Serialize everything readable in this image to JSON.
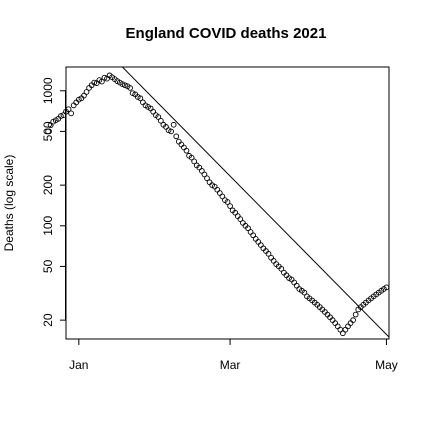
{
  "chart_data": {
    "type": "scatter",
    "title": "England COVID deaths 2021",
    "xlabel": "",
    "ylabel": "Deaths (log scale)",
    "y_scale": "log",
    "xlim": [
      "2020-12-27",
      "2021-05-02"
    ],
    "ylim": [
      14.5,
      1500
    ],
    "x_ticks": [
      {
        "date": "2021-01-01",
        "label": "Jan"
      },
      {
        "date": "2021-03-01",
        "label": "Mar"
      },
      {
        "date": "2021-05-01",
        "label": "May"
      }
    ],
    "y_ticks": [
      20,
      50,
      100,
      200,
      500,
      1000
    ],
    "grid": false,
    "legend": "none",
    "fit_line": {
      "from": {
        "date": "2021-01-18",
        "y": 1500
      },
      "to": {
        "date": "2021-05-02",
        "y": 15
      }
    },
    "points": [
      {
        "date": "2020-12-20",
        "y": 500
      },
      {
        "date": "2020-12-21",
        "y": 555
      },
      {
        "date": "2020-12-22",
        "y": 590
      },
      {
        "date": "2020-12-23",
        "y": 605
      },
      {
        "date": "2020-12-24",
        "y": 620
      },
      {
        "date": "2020-12-25",
        "y": 650
      },
      {
        "date": "2020-12-26",
        "y": 660
      },
      {
        "date": "2020-12-27",
        "y": 700
      },
      {
        "date": "2020-12-28",
        "y": 730
      },
      {
        "date": "2020-12-29",
        "y": 680
      },
      {
        "date": "2020-12-30",
        "y": 780
      },
      {
        "date": "2020-12-31",
        "y": 820
      },
      {
        "date": "2021-01-01",
        "y": 860
      },
      {
        "date": "2021-01-02",
        "y": 880
      },
      {
        "date": "2021-01-03",
        "y": 920
      },
      {
        "date": "2021-01-04",
        "y": 980
      },
      {
        "date": "2021-01-05",
        "y": 1050
      },
      {
        "date": "2021-01-06",
        "y": 1100
      },
      {
        "date": "2021-01-07",
        "y": 1150
      },
      {
        "date": "2021-01-08",
        "y": 1140
      },
      {
        "date": "2021-01-09",
        "y": 1200
      },
      {
        "date": "2021-01-10",
        "y": 1170
      },
      {
        "date": "2021-01-11",
        "y": 1250
      },
      {
        "date": "2021-01-12",
        "y": 1230
      },
      {
        "date": "2021-01-13",
        "y": 1300
      },
      {
        "date": "2021-01-14",
        "y": 1260
      },
      {
        "date": "2021-01-15",
        "y": 1220
      },
      {
        "date": "2021-01-16",
        "y": 1180
      },
      {
        "date": "2021-01-17",
        "y": 1150
      },
      {
        "date": "2021-01-18",
        "y": 1120
      },
      {
        "date": "2021-01-19",
        "y": 1100
      },
      {
        "date": "2021-01-20",
        "y": 1080
      },
      {
        "date": "2021-01-21",
        "y": 1050
      },
      {
        "date": "2021-01-22",
        "y": 960
      },
      {
        "date": "2021-01-23",
        "y": 940
      },
      {
        "date": "2021-01-24",
        "y": 900
      },
      {
        "date": "2021-01-25",
        "y": 880
      },
      {
        "date": "2021-01-26",
        "y": 820
      },
      {
        "date": "2021-01-27",
        "y": 780
      },
      {
        "date": "2021-01-28",
        "y": 760
      },
      {
        "date": "2021-01-29",
        "y": 740
      },
      {
        "date": "2021-01-30",
        "y": 700
      },
      {
        "date": "2021-01-31",
        "y": 660
      },
      {
        "date": "2021-02-01",
        "y": 640
      },
      {
        "date": "2021-02-02",
        "y": 600
      },
      {
        "date": "2021-02-03",
        "y": 560
      },
      {
        "date": "2021-02-04",
        "y": 540
      },
      {
        "date": "2021-02-05",
        "y": 510
      },
      {
        "date": "2021-02-06",
        "y": 500
      },
      {
        "date": "2021-02-07",
        "y": 560
      },
      {
        "date": "2021-02-08",
        "y": 460
      },
      {
        "date": "2021-02-09",
        "y": 420
      },
      {
        "date": "2021-02-10",
        "y": 400
      },
      {
        "date": "2021-02-11",
        "y": 380
      },
      {
        "date": "2021-02-12",
        "y": 360
      },
      {
        "date": "2021-02-13",
        "y": 330
      },
      {
        "date": "2021-02-14",
        "y": 320
      },
      {
        "date": "2021-02-15",
        "y": 300
      },
      {
        "date": "2021-02-16",
        "y": 280
      },
      {
        "date": "2021-02-17",
        "y": 270
      },
      {
        "date": "2021-02-18",
        "y": 255
      },
      {
        "date": "2021-02-19",
        "y": 240
      },
      {
        "date": "2021-02-20",
        "y": 225
      },
      {
        "date": "2021-02-21",
        "y": 210
      },
      {
        "date": "2021-02-22",
        "y": 200
      },
      {
        "date": "2021-02-23",
        "y": 195
      },
      {
        "date": "2021-02-24",
        "y": 185
      },
      {
        "date": "2021-02-25",
        "y": 175
      },
      {
        "date": "2021-02-26",
        "y": 165
      },
      {
        "date": "2021-02-27",
        "y": 155
      },
      {
        "date": "2021-02-28",
        "y": 150
      },
      {
        "date": "2021-03-01",
        "y": 140
      },
      {
        "date": "2021-03-02",
        "y": 130
      },
      {
        "date": "2021-03-03",
        "y": 125
      },
      {
        "date": "2021-03-04",
        "y": 118
      },
      {
        "date": "2021-03-05",
        "y": 112
      },
      {
        "date": "2021-03-06",
        "y": 105
      },
      {
        "date": "2021-03-07",
        "y": 100
      },
      {
        "date": "2021-03-08",
        "y": 96
      },
      {
        "date": "2021-03-09",
        "y": 90
      },
      {
        "date": "2021-03-10",
        "y": 85
      },
      {
        "date": "2021-03-11",
        "y": 80
      },
      {
        "date": "2021-03-12",
        "y": 76
      },
      {
        "date": "2021-03-13",
        "y": 72
      },
      {
        "date": "2021-03-14",
        "y": 68
      },
      {
        "date": "2021-03-15",
        "y": 65
      },
      {
        "date": "2021-03-16",
        "y": 62
      },
      {
        "date": "2021-03-17",
        "y": 58
      },
      {
        "date": "2021-03-18",
        "y": 55
      },
      {
        "date": "2021-03-19",
        "y": 52
      },
      {
        "date": "2021-03-20",
        "y": 50
      },
      {
        "date": "2021-03-21",
        "y": 48
      },
      {
        "date": "2021-03-22",
        "y": 45
      },
      {
        "date": "2021-03-23",
        "y": 43
      },
      {
        "date": "2021-03-24",
        "y": 41
      },
      {
        "date": "2021-03-25",
        "y": 40
      },
      {
        "date": "2021-03-26",
        "y": 38
      },
      {
        "date": "2021-03-27",
        "y": 36
      },
      {
        "date": "2021-03-28",
        "y": 34
      },
      {
        "date": "2021-03-29",
        "y": 33
      },
      {
        "date": "2021-03-30",
        "y": 32
      },
      {
        "date": "2021-03-31",
        "y": 30
      },
      {
        "date": "2021-04-01",
        "y": 29
      },
      {
        "date": "2021-04-02",
        "y": 28
      },
      {
        "date": "2021-04-03",
        "y": 27
      },
      {
        "date": "2021-04-04",
        "y": 26
      },
      {
        "date": "2021-04-05",
        "y": 25
      },
      {
        "date": "2021-04-06",
        "y": 24
      },
      {
        "date": "2021-04-07",
        "y": 23
      },
      {
        "date": "2021-04-08",
        "y": 22
      },
      {
        "date": "2021-04-09",
        "y": 21
      },
      {
        "date": "2021-04-10",
        "y": 20
      },
      {
        "date": "2021-04-11",
        "y": 19
      },
      {
        "date": "2021-04-12",
        "y": 18
      },
      {
        "date": "2021-04-13",
        "y": 17
      },
      {
        "date": "2021-04-14",
        "y": 16
      },
      {
        "date": "2021-04-15",
        "y": 17
      },
      {
        "date": "2021-04-16",
        "y": 18
      },
      {
        "date": "2021-04-17",
        "y": 19
      },
      {
        "date": "2021-04-18",
        "y": 20
      },
      {
        "date": "2021-04-19",
        "y": 22
      },
      {
        "date": "2021-04-20",
        "y": 24
      },
      {
        "date": "2021-04-21",
        "y": 25
      },
      {
        "date": "2021-04-22",
        "y": 26
      },
      {
        "date": "2021-04-23",
        "y": 27
      },
      {
        "date": "2021-04-24",
        "y": 28
      },
      {
        "date": "2021-04-25",
        "y": 29
      },
      {
        "date": "2021-04-26",
        "y": 30
      },
      {
        "date": "2021-04-27",
        "y": 31
      },
      {
        "date": "2021-04-28",
        "y": 32
      },
      {
        "date": "2021-04-29",
        "y": 33
      },
      {
        "date": "2021-04-30",
        "y": 34
      },
      {
        "date": "2021-05-01",
        "y": 35
      }
    ]
  }
}
